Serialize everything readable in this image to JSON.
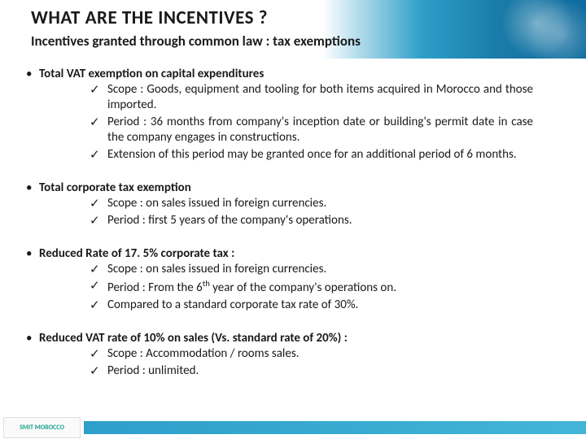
{
  "header": {
    "title": "WHAT ARE THE INCENTIVES ?",
    "subtitle": "Incentives granted through common law : tax exemptions",
    "gradient_colors": [
      "#ffffff",
      "#2d9fc9",
      "#1a7ba8",
      "#0f6b9e"
    ]
  },
  "sections": [
    {
      "title": "Total VAT exemption on capital expenditures",
      "items": [
        "Scope : Goods, equipment and tooling for both items acquired in Morocco and those imported.",
        "Period : 36 months from company's inception date or building's permit date in case the company engages in constructions.",
        "Extension of this period may be granted once for an additional period of 6 months."
      ]
    },
    {
      "title": "Total corporate tax exemption",
      "items": [
        "Scope : on sales issued in foreign currencies.",
        "Period : first 5 years of the company's operations."
      ]
    },
    {
      "title": "Reduced Rate of 17. 5% corporate tax :",
      "items": [
        "Scope : on sales issued in foreign currencies.",
        "Period : From the 6th year of the company's operations on.",
        "Compared to a standard corporate tax rate of 30%."
      ],
      "has_superscript": true
    },
    {
      "title": "Reduced VAT rate of 10% on sales (Vs. standard rate of 20%) :",
      "items": [
        "Scope : Accommodation / rooms sales.",
        "Period : unlimited."
      ]
    }
  ],
  "bullet_char": "•",
  "check_char": "✓",
  "footer": {
    "logo_text": "SMIT MOROCCO",
    "bar_color": "#2d9fc9"
  },
  "colors": {
    "text": "#1a1a1a",
    "background": "#ffffff",
    "accent": "#2d9fc9"
  },
  "fonts": {
    "title_size": 23,
    "subtitle_size": 17,
    "body_size": 15
  }
}
